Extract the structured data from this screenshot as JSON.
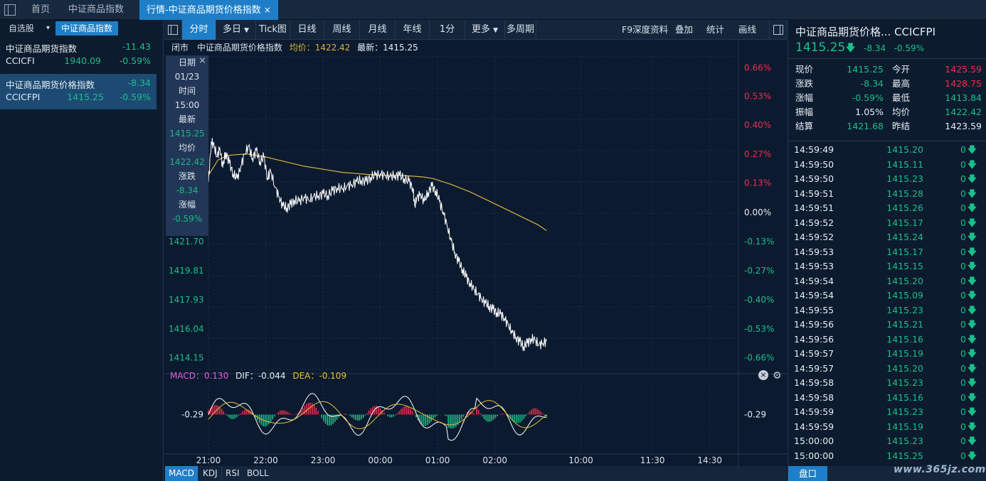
{
  "top_tabs": {
    "home": "首页",
    "index": "中证商品指数",
    "active": "行情-中证商品期货价格指数",
    "close": "×"
  },
  "left": {
    "tabs": [
      "自选股",
      "中证商品指数"
    ],
    "dropdown_arrow": "▾",
    "rows": [
      {
        "name": "中证商品期货指数",
        "code": "CCICFI",
        "change": "-11.43",
        "price": "1940.09",
        "pct": "-0.59%"
      },
      {
        "name": "中证商品期货价格指数",
        "code": "CCICFPI",
        "change": "-8.34",
        "price": "1415.25",
        "pct": "-0.59%"
      }
    ]
  },
  "toolbar": {
    "items": [
      "分时",
      "多日",
      "Tick图",
      "日线",
      "周线",
      "月线",
      "年线",
      "1分",
      "更多",
      "多周期"
    ],
    "right_items": [
      "F9深度资料",
      "叠加",
      "统计",
      "画线"
    ]
  },
  "chart_info": {
    "status": "闭市",
    "name": "中证商品期货价格指数",
    "avg_label": "均价：1422.42",
    "last_label": "最新：1415.25"
  },
  "crosshair": {
    "labels": [
      "日期",
      "01/23",
      "时间",
      "15:00",
      "最新",
      "1415.25",
      "均价",
      "1422.42",
      "涨跌",
      "-8.34",
      "涨幅",
      "-0.59%"
    ],
    "close": "×"
  },
  "macd_info": {
    "macd": "MACD：0.130",
    "dif": "DIF：-0.044",
    "dea": "DEA：-0.109"
  },
  "indicator_tabs": [
    "MACD",
    "KDJ",
    "RSI",
    "BOLL"
  ],
  "colors": {
    "up": "#ee2e4c",
    "down": "#19c08a",
    "accent": "#1e7fc8",
    "avg_line": "#d9b243",
    "dif_line": "#ffffff",
    "dea_line": "#e8c23a",
    "background": "#0b1a2f"
  },
  "chart_data": {
    "type": "line",
    "prev_settle": 1423.59,
    "ylim": [
      1413.4,
      1433.7
    ],
    "left_ticks": [
      "1421.70",
      "1419.81",
      "1417.93",
      "1416.04",
      "1414.15"
    ],
    "left_tick_values": [
      1421.7,
      1419.81,
      1417.93,
      1416.04,
      1414.15
    ],
    "right_ticks": [
      {
        "label": "0.66%",
        "value": 1432.99,
        "side": "up"
      },
      {
        "label": "0.53%",
        "value": 1431.13,
        "side": "up"
      },
      {
        "label": "0.40%",
        "value": 1429.26,
        "side": "up"
      },
      {
        "label": "0.27%",
        "value": 1427.39,
        "side": "up"
      },
      {
        "label": "0.13%",
        "value": 1425.52,
        "side": "up"
      },
      {
        "label": "0.00%",
        "value": 1423.59,
        "side": "flat"
      },
      {
        "label": "-0.13%",
        "value": 1421.7,
        "side": "down"
      },
      {
        "label": "-0.27%",
        "value": 1419.81,
        "side": "down"
      },
      {
        "label": "-0.40%",
        "value": 1417.93,
        "side": "down"
      },
      {
        "label": "-0.53%",
        "value": 1416.04,
        "side": "down"
      },
      {
        "label": "-0.66%",
        "value": 1414.15,
        "side": "down"
      }
    ],
    "x_labels": [
      {
        "label": "21:00",
        "t": 0
      },
      {
        "label": "22:00",
        "t": 60
      },
      {
        "label": "23:00",
        "t": 120
      },
      {
        "label": "00:00",
        "t": 180
      },
      {
        "label": "01:00",
        "t": 240
      },
      {
        "label": "02:00",
        "t": 300
      },
      {
        "label": "10:00",
        "t": 390
      },
      {
        "label": "11:30",
        "t": 465
      },
      {
        "label": "14:30",
        "t": 525
      }
    ],
    "t_max": 555,
    "series": [
      {
        "values": [
          [
            0,
            1425.6
          ],
          [
            3,
            1428.2
          ],
          [
            6,
            1427.9
          ],
          [
            9,
            1427.2
          ],
          [
            12,
            1427.8
          ],
          [
            15,
            1426.5
          ],
          [
            18,
            1427.5
          ],
          [
            22,
            1426.8
          ],
          [
            26,
            1426.1
          ],
          [
            30,
            1425.8
          ],
          [
            34,
            1426.6
          ],
          [
            38,
            1427.4
          ],
          [
            42,
            1427.9
          ],
          [
            46,
            1427.1
          ],
          [
            50,
            1427.6
          ],
          [
            54,
            1426.9
          ],
          [
            58,
            1427.2
          ],
          [
            62,
            1425.8
          ],
          [
            65,
            1426.3
          ],
          [
            70,
            1425.2
          ],
          [
            74,
            1424.6
          ],
          [
            78,
            1424.0
          ],
          [
            82,
            1423.9
          ],
          [
            86,
            1424.1
          ],
          [
            90,
            1424.4
          ],
          [
            95,
            1424.3
          ],
          [
            100,
            1424.6
          ],
          [
            105,
            1424.4
          ],
          [
            110,
            1424.6
          ],
          [
            115,
            1424.7
          ],
          [
            120,
            1424.8
          ],
          [
            125,
            1424.7
          ],
          [
            130,
            1425.0
          ],
          [
            135,
            1425.2
          ],
          [
            140,
            1425.1
          ],
          [
            145,
            1425.3
          ],
          [
            150,
            1425.4
          ],
          [
            155,
            1425.6
          ],
          [
            160,
            1425.7
          ],
          [
            165,
            1425.6
          ],
          [
            170,
            1425.9
          ],
          [
            175,
            1426.0
          ],
          [
            180,
            1426.1
          ],
          [
            185,
            1426.0
          ],
          [
            190,
            1425.9
          ],
          [
            195,
            1426.0
          ],
          [
            200,
            1426.0
          ],
          [
            205,
            1425.8
          ],
          [
            210,
            1425.6
          ],
          [
            214,
            1425.2
          ],
          [
            216,
            1424.0
          ],
          [
            218,
            1424.5
          ],
          [
            222,
            1424.8
          ],
          [
            226,
            1424.3
          ],
          [
            230,
            1424.9
          ],
          [
            234,
            1425.3
          ],
          [
            238,
            1425.0
          ],
          [
            242,
            1424.3
          ],
          [
            246,
            1423.6
          ],
          [
            250,
            1422.7
          ],
          [
            254,
            1421.8
          ],
          [
            258,
            1421.0
          ],
          [
            262,
            1420.4
          ],
          [
            266,
            1419.9
          ],
          [
            270,
            1419.4
          ],
          [
            274,
            1419.0
          ],
          [
            278,
            1418.6
          ],
          [
            282,
            1418.3
          ],
          [
            286,
            1418.0
          ],
          [
            290,
            1417.7
          ],
          [
            294,
            1417.5
          ],
          [
            298,
            1417.3
          ],
          [
            302,
            1417.1
          ],
          [
            306,
            1417.0
          ],
          [
            310,
            1416.7
          ],
          [
            314,
            1416.3
          ],
          [
            318,
            1415.8
          ],
          [
            322,
            1415.5
          ],
          [
            326,
            1415.2
          ],
          [
            330,
            1414.9
          ],
          [
            334,
            1415.1
          ],
          [
            338,
            1415.4
          ],
          [
            342,
            1415.3
          ],
          [
            346,
            1415.0
          ],
          [
            350,
            1415.1
          ],
          [
            354,
            1415.25
          ]
        ]
      },
      {
        "name": "均价",
        "values": [
          [
            0,
            1426.0
          ],
          [
            10,
            1427.0
          ],
          [
            20,
            1427.3
          ],
          [
            40,
            1427.4
          ],
          [
            60,
            1427.2
          ],
          [
            80,
            1426.9
          ],
          [
            100,
            1426.6
          ],
          [
            120,
            1426.4
          ],
          [
            140,
            1426.2
          ],
          [
            160,
            1426.1
          ],
          [
            180,
            1426.0
          ],
          [
            200,
            1426.0
          ],
          [
            215,
            1425.95
          ],
          [
            225,
            1425.9
          ],
          [
            235,
            1425.8
          ],
          [
            245,
            1425.6
          ],
          [
            255,
            1425.4
          ],
          [
            265,
            1425.15
          ],
          [
            275,
            1424.9
          ],
          [
            285,
            1424.6
          ],
          [
            295,
            1424.3
          ],
          [
            305,
            1424.0
          ],
          [
            315,
            1423.7
          ],
          [
            325,
            1423.4
          ],
          [
            335,
            1423.1
          ],
          [
            345,
            1422.8
          ],
          [
            354,
            1422.42
          ]
        ]
      }
    ],
    "macd": {
      "y_label": "-0.29",
      "ylim": [
        -0.6,
        0.6
      ]
    }
  },
  "right": {
    "title": "中证商品期货价格... CCICFPI",
    "price": "1415.25",
    "change": "-8.34",
    "pct": "-0.59%",
    "quote_rows": [
      {
        "l1": "现价",
        "v1": "1415.25",
        "c1": "down",
        "l2": "今开",
        "v2": "1425.59",
        "c2": "up"
      },
      {
        "l1": "涨跌",
        "v1": "-8.34",
        "c1": "down",
        "l2": "最高",
        "v2": "1428.75",
        "c2": "up"
      },
      {
        "l1": "涨幅",
        "v1": "-0.59%",
        "c1": "down",
        "l2": "最低",
        "v2": "1413.84",
        "c2": "down"
      },
      {
        "l1": "振幅",
        "v1": "1.05%",
        "c1": "flat",
        "l2": "均价",
        "v2": "1422.42",
        "c2": "down"
      },
      {
        "l1": "结算",
        "v1": "1421.68",
        "c1": "down",
        "l2": "昨结",
        "v2": "1423.59",
        "c2": "flat"
      }
    ],
    "ticks": [
      {
        "time": "14:59:49",
        "price": "1415.20",
        "vol": "0"
      },
      {
        "time": "14:59:50",
        "price": "1415.11",
        "vol": "0"
      },
      {
        "time": "14:59:50",
        "price": "1415.23",
        "vol": "0"
      },
      {
        "time": "14:59:51",
        "price": "1415.28",
        "vol": "0"
      },
      {
        "time": "14:59:51",
        "price": "1415.26",
        "vol": "0"
      },
      {
        "time": "14:59:52",
        "price": "1415.17",
        "vol": "0"
      },
      {
        "time": "14:59:52",
        "price": "1415.24",
        "vol": "0"
      },
      {
        "time": "14:59:53",
        "price": "1415.17",
        "vol": "0"
      },
      {
        "time": "14:59:53",
        "price": "1415.15",
        "vol": "0"
      },
      {
        "time": "14:59:54",
        "price": "1415.20",
        "vol": "0"
      },
      {
        "time": "14:59:54",
        "price": "1415.09",
        "vol": "0"
      },
      {
        "time": "14:59:55",
        "price": "1415.23",
        "vol": "0"
      },
      {
        "time": "14:59:56",
        "price": "1415.21",
        "vol": "0"
      },
      {
        "time": "14:59:56",
        "price": "1415.16",
        "vol": "0"
      },
      {
        "time": "14:59:57",
        "price": "1415.19",
        "vol": "0"
      },
      {
        "time": "14:59:57",
        "price": "1415.20",
        "vol": "0"
      },
      {
        "time": "14:59:58",
        "price": "1415.23",
        "vol": "0"
      },
      {
        "time": "14:59:58",
        "price": "1415.16",
        "vol": "0"
      },
      {
        "time": "14:59:59",
        "price": "1415.23",
        "vol": "0"
      },
      {
        "time": "14:59:59",
        "price": "1415.19",
        "vol": "0"
      },
      {
        "time": "15:00:00",
        "price": "1415.23",
        "vol": "0"
      },
      {
        "time": "15:00:00",
        "price": "1415.25",
        "vol": "0"
      }
    ],
    "pankou": "盘口"
  },
  "watermark": "www.365jz.com"
}
